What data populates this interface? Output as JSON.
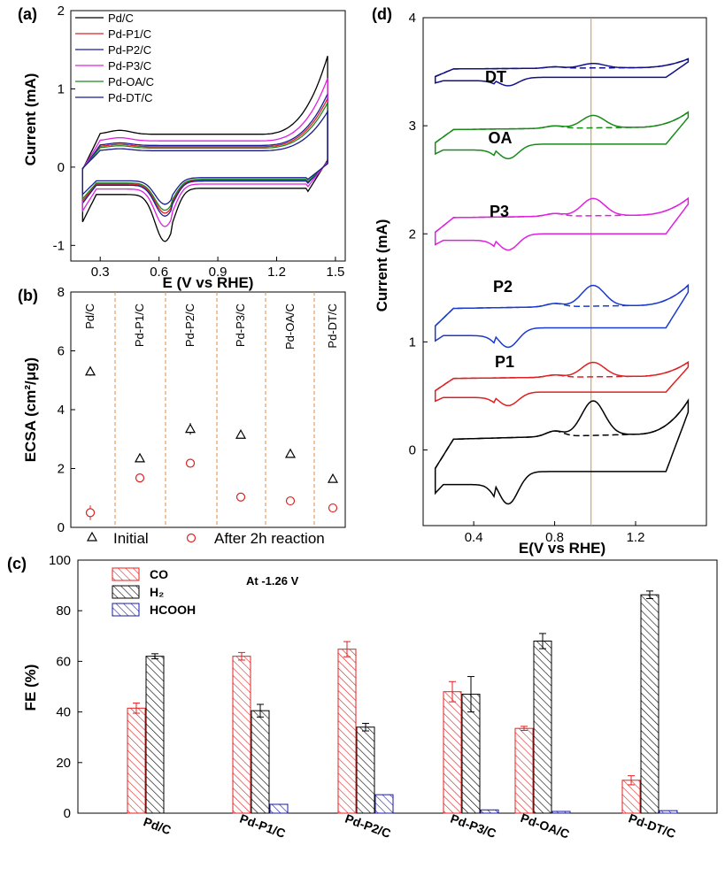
{
  "chart_data": [
    {
      "panel": "(a)",
      "type": "line",
      "xlabel": "E (V vs RHE)",
      "ylabel": "Current (mA)",
      "xlim": [
        0.15,
        1.55
      ],
      "ylim": [
        -1.2,
        2
      ],
      "xticks": [
        "0.3",
        "0.6",
        "0.9",
        "1.2",
        "1.5"
      ],
      "yticks": [
        "-1",
        "0",
        "1",
        "2"
      ],
      "legend_position": "top-left",
      "series": [
        {
          "name": "Pd/C",
          "color": "#000000",
          "scale": 1.0
        },
        {
          "name": "Pd-P1/C",
          "color": "#e02020",
          "scale": 0.62
        },
        {
          "name": "Pd-P2/C",
          "color": "#1a1aa0",
          "scale": 0.66
        },
        {
          "name": "Pd-P3/C",
          "color": "#e020e0",
          "scale": 0.8
        },
        {
          "name": "Pd-OA/C",
          "color": "#1a8a1a",
          "scale": 0.58
        },
        {
          "name": "Pd-DT/C",
          "color": "#1a1a90",
          "scale": 0.5
        }
      ]
    },
    {
      "panel": "(b)",
      "type": "scatter",
      "ylabel": "ECSA (cm²/μg)",
      "ylim": [
        0,
        8
      ],
      "yticks": [
        "0",
        "2",
        "4",
        "6",
        "8"
      ],
      "categories": [
        "Pd/C",
        "Pd-P1/C",
        "Pd-P2/C",
        "Pd-P3/C",
        "Pd-OA/C",
        "Pd-DT/C"
      ],
      "series": [
        {
          "name": "Initial",
          "marker": "triangle",
          "color": "#000000",
          "values": [
            5.3,
            2.35,
            3.35,
            3.15,
            2.5,
            1.65
          ],
          "errors": [
            0.15,
            0.1,
            0.2,
            0.05,
            0.05,
            0.05
          ]
        },
        {
          "name": "After 2h reaction",
          "marker": "circle",
          "color": "#e02020",
          "values": [
            0.5,
            1.68,
            2.18,
            1.03,
            0.9,
            0.66
          ],
          "errors": [
            0.25,
            0.12,
            0.08,
            0.05,
            0.05,
            0.05
          ]
        }
      ]
    },
    {
      "panel": "(c)",
      "type": "bar",
      "ylabel": "FE (%)",
      "ylim": [
        0,
        100
      ],
      "yticks": [
        "0",
        "20",
        "40",
        "60",
        "80",
        "100"
      ],
      "annotation": "At -1.26 V",
      "categories": [
        "Pd/C",
        "Pd-P1/C",
        "Pd-P2/C",
        "Pd-P3/C",
        "Pd-OA/C",
        "Pd-DT/C"
      ],
      "series": [
        {
          "name": "CO",
          "color": "#e02020",
          "values": [
            41.5,
            62,
            64.8,
            48,
            33.5,
            13
          ],
          "errors": [
            2,
            1.5,
            3,
            4,
            0.8,
            1.8
          ]
        },
        {
          "name": "H₂",
          "color": "#000000",
          "values": [
            62,
            40.5,
            34,
            47,
            68,
            86.3
          ],
          "errors": [
            1,
            2.5,
            1.5,
            7,
            3,
            1.5
          ]
        },
        {
          "name": "HCOOH",
          "color": "#1a1aa0",
          "values": [
            0,
            3.5,
            7.3,
            1.3,
            0.7,
            1
          ],
          "errors": [
            0,
            0,
            0,
            0,
            0,
            0
          ]
        }
      ]
    },
    {
      "panel": "(d)",
      "type": "line",
      "xlabel": "E(V vs RHE)",
      "ylabel": "Current (mA)",
      "xlim": [
        0.15,
        1.55
      ],
      "ylim": [
        -0.7,
        4
      ],
      "xticks": [
        "0.4",
        "0.8",
        "1.2"
      ],
      "yticks": [
        "0",
        "1",
        "2",
        "3",
        "4"
      ],
      "reference_line_x": 0.98,
      "series": [
        {
          "name": "Pd/C",
          "color": "#000000",
          "offset": 0,
          "scale": 1.0,
          "peak": 1
        },
        {
          "name": "P1",
          "color": "#e02020",
          "offset": 0.62,
          "scale": 0.42,
          "peak": 1
        },
        {
          "name": "P2",
          "color": "#1a3ad0",
          "offset": 1.25,
          "scale": 0.6,
          "peak": 1
        },
        {
          "name": "P3",
          "color": "#e020e0",
          "offset": 2.1,
          "scale": 0.5,
          "peak": 1
        },
        {
          "name": "OA",
          "color": "#1a8a1a",
          "offset": 2.92,
          "scale": 0.45,
          "peak": 0.8
        },
        {
          "name": "DT",
          "color": "#10108a",
          "offset": 3.5,
          "scale": 0.26,
          "peak": 0.5
        }
      ],
      "curve_labels": [
        "DT",
        "OA",
        "P3",
        "P2",
        "P1"
      ]
    }
  ]
}
